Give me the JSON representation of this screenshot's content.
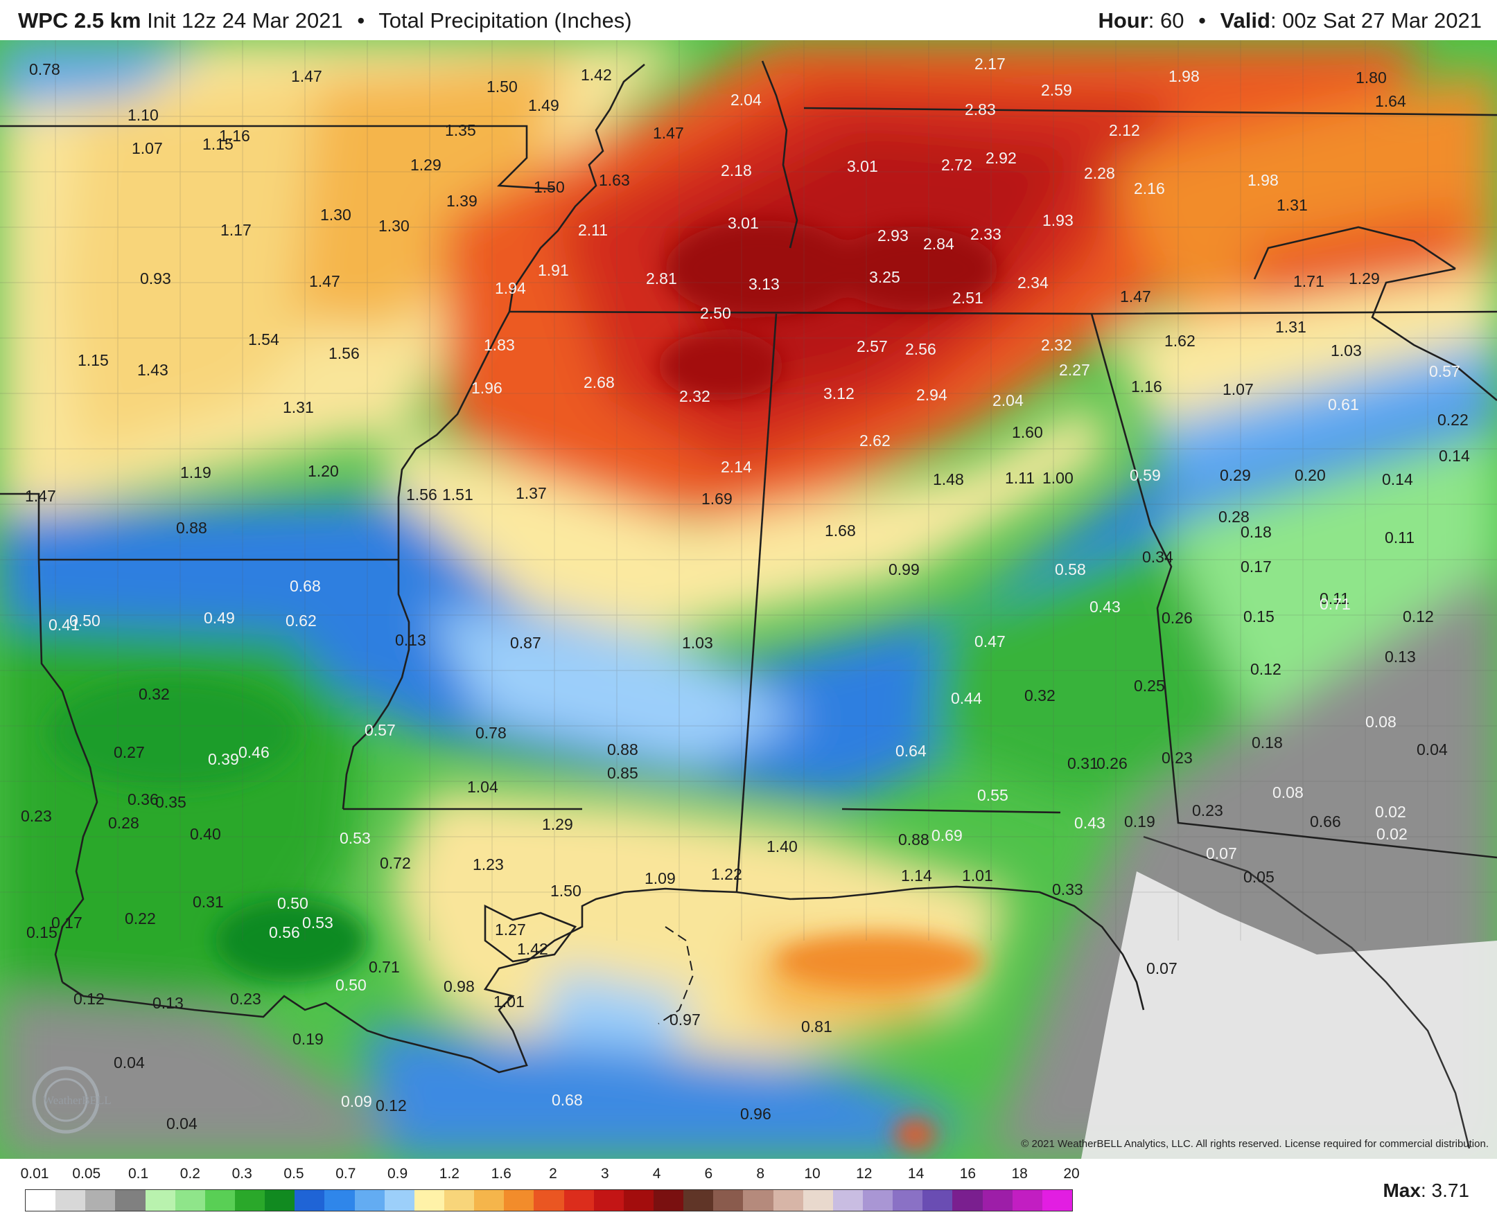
{
  "header": {
    "model": "WPC 2.5 km",
    "init": "Init 12z 24 Mar 2021",
    "bullet": "•",
    "product": "Total Precipitation (Inches)",
    "hour_label": "Hour",
    "hour_value": ": 60",
    "valid_label": "Valid",
    "valid_value": ": 00z Sat 27 Mar 2021"
  },
  "map": {
    "region": "Lower Mississippi Valley and Gulf Coast",
    "copyright": "© 2021 WeatherBELL Analytics, LLC. All rights reserved. License required for commercial distribution.",
    "logo": "WeatherBELL",
    "value_labels": [
      "0.78",
      "1.47",
      "1.50",
      "1.42",
      "1.49",
      "2.17",
      "1.98",
      "1.80",
      "1.64",
      "2.04",
      "2.83",
      "2.59",
      "1.10",
      "1.16",
      "1.15",
      "1.07",
      "1.35",
      "1.47",
      "2.12",
      "1.29",
      "1.50",
      "1.63",
      "2.18",
      "3.01",
      "2.72",
      "2.92",
      "2.28",
      "2.16",
      "1.98",
      "1.39",
      "1.31",
      "1.17",
      "1.30",
      "1.30",
      "3.01",
      "2.93",
      "2.84",
      "2.33",
      "1.93",
      "2.11",
      "0.93",
      "1.47",
      "1.91",
      "2.81",
      "3.13",
      "3.25",
      "2.34",
      "1.71",
      "1.29",
      "1.94",
      "2.51",
      "1.47",
      "2.50",
      "1.31",
      "1.54",
      "1.56",
      "1.83",
      "2.57",
      "2.56",
      "2.32",
      "1.62",
      "1.15",
      "1.43",
      "2.68",
      "2.27",
      "1.03",
      "1.96",
      "2.32",
      "3.12",
      "2.94",
      "2.04",
      "1.16",
      "1.07",
      "1.31",
      "0.61",
      "0.57",
      "0.22",
      "1.60",
      "2.62",
      "0.14",
      "1.19",
      "1.20",
      "2.14",
      "1.48",
      "1.11",
      "1.00",
      "0.59",
      "0.29",
      "0.20",
      "0.14",
      "1.47",
      "1.56",
      "1.51",
      "1.37",
      "1.69",
      "0.28",
      "0.88",
      "1.68",
      "0.18",
      "0.11",
      "0.99",
      "0.34",
      "0.58",
      "0.17",
      "0.68",
      "0.43",
      "0.11",
      "0.71",
      "0.41",
      "0.50",
      "0.49",
      "0.62",
      "0.13",
      "0.87",
      "1.03",
      "0.26",
      "0.15",
      "0.12",
      "0.47",
      "0.13",
      "0.32",
      "0.44",
      "0.32",
      "0.25",
      "0.12",
      "0.57",
      "0.78",
      "0.08",
      "0.27",
      "0.46",
      "0.39",
      "0.88",
      "0.64",
      "0.31",
      "0.26",
      "0.23",
      "0.18",
      "0.04",
      "0.85",
      "1.04",
      "0.36",
      "0.35",
      "0.55",
      "0.08",
      "0.23",
      "0.28",
      "1.29",
      "0.43",
      "0.19",
      "0.23",
      "0.02",
      "0.40",
      "0.53",
      "0.88",
      "0.69",
      "0.02",
      "0.72",
      "1.23",
      "1.40",
      "0.07",
      "1.50",
      "1.09",
      "1.22",
      "1.14",
      "1.01",
      "0.31",
      "0.50",
      "0.33",
      "0.05",
      "0.22",
      "0.17",
      "0.56",
      "0.53",
      "1.27",
      "1.42",
      "0.15",
      "0.71",
      "0.98",
      "0.50",
      "0.07",
      "0.12",
      "0.13",
      "0.23",
      "1.01",
      "0.19",
      "0.97",
      "0.81",
      "0.04",
      "0.68",
      "0.09",
      "0.12",
      "0.96",
      "0.04",
      "0.66"
    ]
  },
  "legend": {
    "ticks": [
      "0.01",
      "0.05",
      "0.1",
      "0.2",
      "0.3",
      "0.5",
      "0.7",
      "0.9",
      "1.2",
      "1.6",
      "2",
      "3",
      "4",
      "6",
      "8",
      "10",
      "12",
      "14",
      "16",
      "18",
      "20"
    ],
    "colors": [
      "#ffffff",
      "#d8d8d8",
      "#b0b0b0",
      "#808080",
      "#b9f2ae",
      "#8fe58a",
      "#59cf55",
      "#2aa82a",
      "#118a20",
      "#1f64d6",
      "#2f86ea",
      "#63acf2",
      "#9ccffa",
      "#fff2a8",
      "#f8d57a",
      "#f5b54b",
      "#f28c2b",
      "#ea5622",
      "#dc2d1c",
      "#c31515",
      "#a30d0d",
      "#7a1010",
      "#603527",
      "#8a5b4d",
      "#b58a7c",
      "#d7b5a7",
      "#e9d9cd",
      "#c9bde2",
      "#a996d4",
      "#8a71c5",
      "#6a4db3",
      "#7a1f8f",
      "#9d1ea8",
      "#c21ec2",
      "#e21ee2"
    ],
    "max_label": "Max",
    "max_value": ": 3.71"
  }
}
